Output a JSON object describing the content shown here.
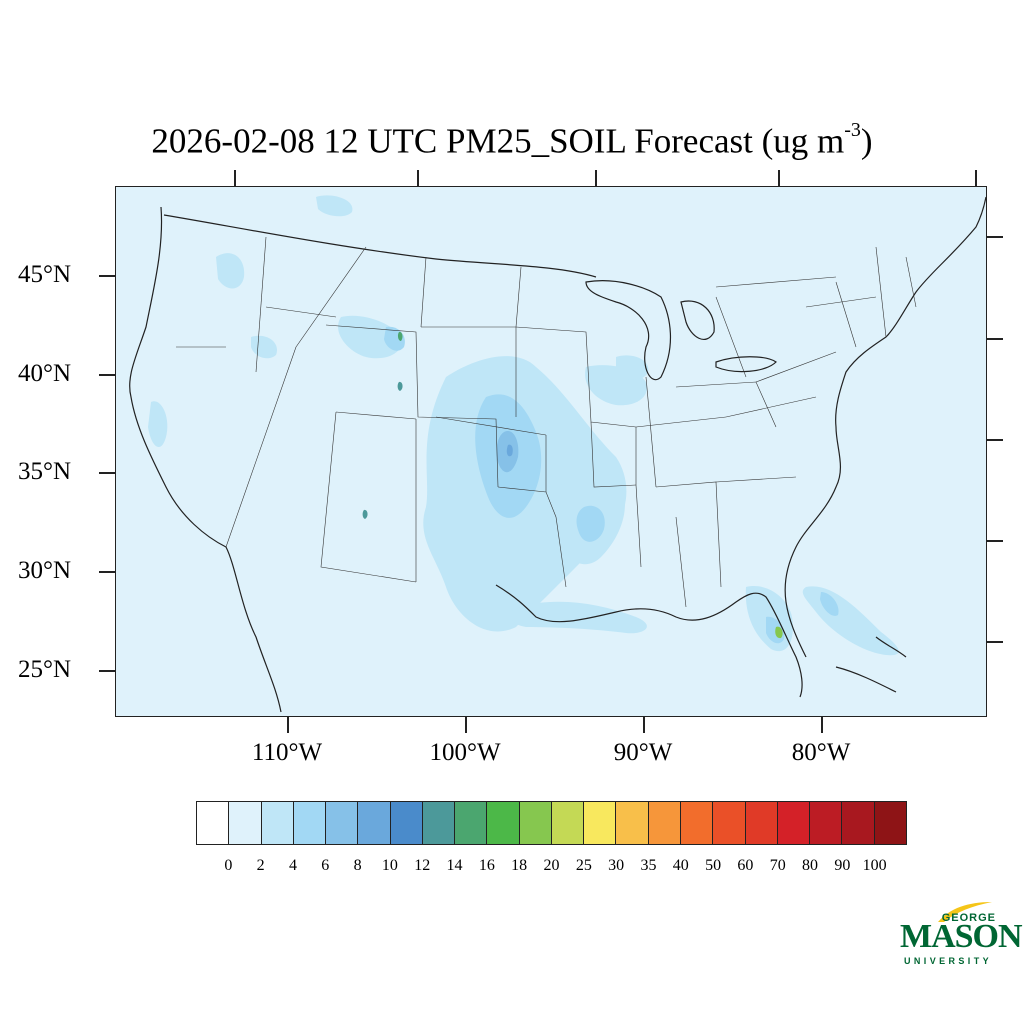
{
  "title": {
    "text": "2026-02-08 12 UTC PM25_SOIL Forecast (ug m",
    "superscript": "-3",
    "close": ")"
  },
  "map": {
    "projection": "lambert-conformal-conus",
    "land_color": "#dff2fb",
    "boundary_color": "#222222",
    "lat_labels": [
      "45°N",
      "40°N",
      "35°N",
      "30°N",
      "25°N"
    ],
    "lon_labels": [
      "110°W",
      "100°W",
      "90°W",
      "80°W"
    ]
  },
  "legend": {
    "levels": [
      "0",
      "2",
      "4",
      "6",
      "8",
      "10",
      "12",
      "14",
      "16",
      "18",
      "20",
      "25",
      "30",
      "35",
      "40",
      "50",
      "60",
      "70",
      "80",
      "90",
      "100"
    ],
    "colors": [
      "#ffffff",
      "#dff2fb",
      "#bfe6f7",
      "#a2d8f4",
      "#86c1e8",
      "#6aa8dc",
      "#4a8bcb",
      "#4c999a",
      "#4ba66f",
      "#4cb848",
      "#86c74f",
      "#c4d955",
      "#f8e85e",
      "#f8bf4a",
      "#f6963a",
      "#f26d2c",
      "#ea5028",
      "#e03a27",
      "#d42128",
      "#bc1c24",
      "#a8181f",
      "#8e1416"
    ]
  },
  "logo": {
    "line1": "GEORGE",
    "line2": "MASON",
    "line3": "UNIVERSITY",
    "color": "#006633",
    "accent": "#f5c518"
  }
}
